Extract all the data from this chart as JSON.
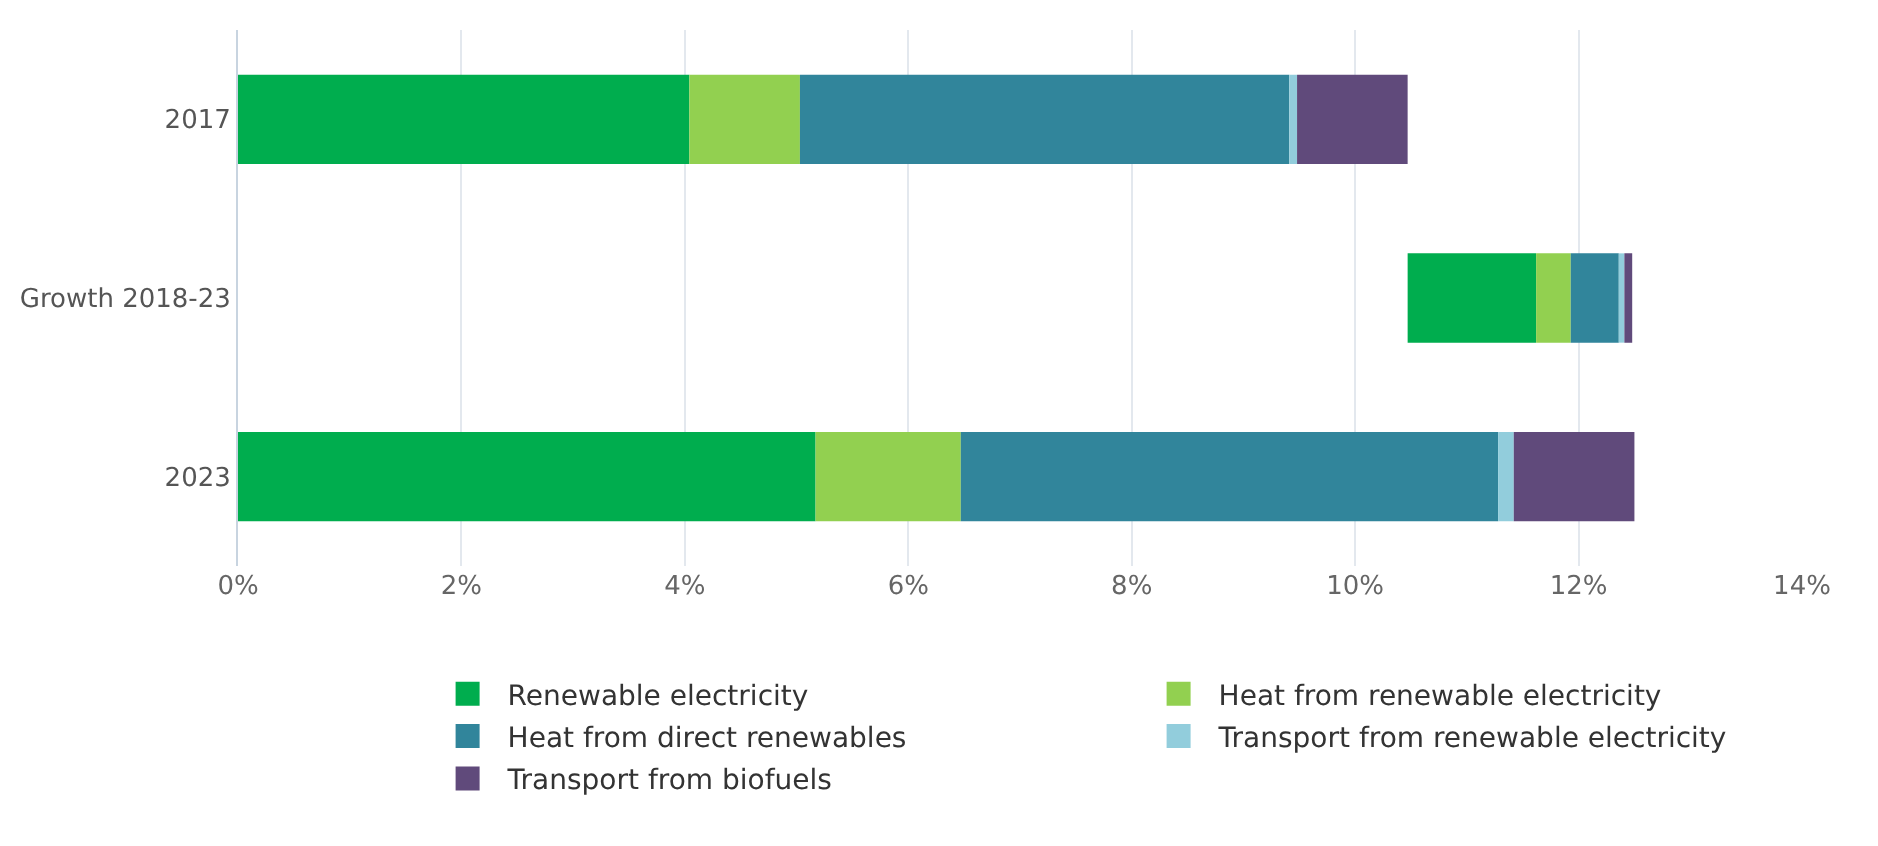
{
  "chart_data": {
    "type": "bar",
    "orientation": "horizontal",
    "stacked": true,
    "categories": [
      "2017",
      "Growth 2018-23",
      "2023"
    ],
    "series": [
      {
        "name": "Renewable electricity",
        "color": "#00ad4e",
        "values": [
          4.04,
          1.15,
          5.17
        ],
        "base": [
          0,
          10.47,
          0
        ]
      },
      {
        "name": "Heat from renewable electricity",
        "color": "#92d050",
        "values": [
          0.99,
          0.31,
          1.3
        ]
      },
      {
        "name": "Heat from direct renewables",
        "color": "#31859b",
        "values": [
          4.38,
          0.43,
          4.81
        ]
      },
      {
        "name": "Transport from renewable electricity",
        "color": "#92cddc",
        "values": [
          0.07,
          0.05,
          0.14
        ]
      },
      {
        "name": "Transport from biofuels",
        "color": "#604a7b",
        "values": [
          0.99,
          0.07,
          1.08
        ]
      }
    ],
    "xlim": [
      0,
      14
    ],
    "xticks": [
      {
        "value": 0,
        "label": "0%"
      },
      {
        "value": 2,
        "label": "2%"
      },
      {
        "value": 4,
        "label": "4%"
      },
      {
        "value": 6,
        "label": "6%"
      },
      {
        "value": 8,
        "label": "8%"
      },
      {
        "value": 10,
        "label": "10%"
      },
      {
        "value": 12,
        "label": "12%"
      },
      {
        "value": 14,
        "label": "14%"
      }
    ],
    "grid": "x",
    "legend": "bottom"
  }
}
